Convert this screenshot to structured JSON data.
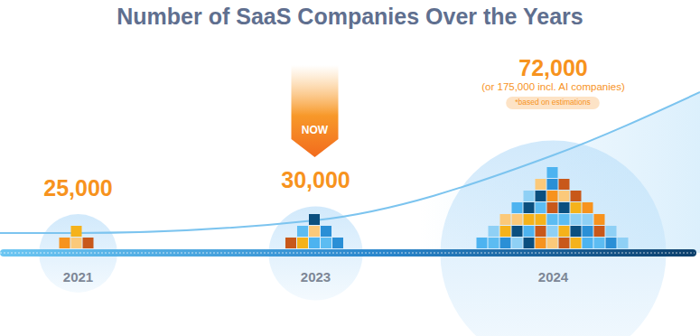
{
  "chart_data": {
    "type": "bubble",
    "title": "Number of SaaS Companies Over the Years",
    "categories": [
      "2021",
      "2023",
      "2024"
    ],
    "values": [
      25000,
      30000,
      72000
    ],
    "value_labels": [
      "25,000",
      "30,000",
      "72,000"
    ],
    "data_labels": true,
    "tick_labels": "x",
    "color": "#cfe8fb",
    "annotations": [
      {
        "category": "2023",
        "text": "NOW",
        "kind": "arrow"
      },
      {
        "category": "2024",
        "text": "(or 175,000 incl. AI companies)",
        "kind": "note"
      },
      {
        "category": "2024",
        "text": "*based on estimations",
        "kind": "badge"
      }
    ]
  }
}
